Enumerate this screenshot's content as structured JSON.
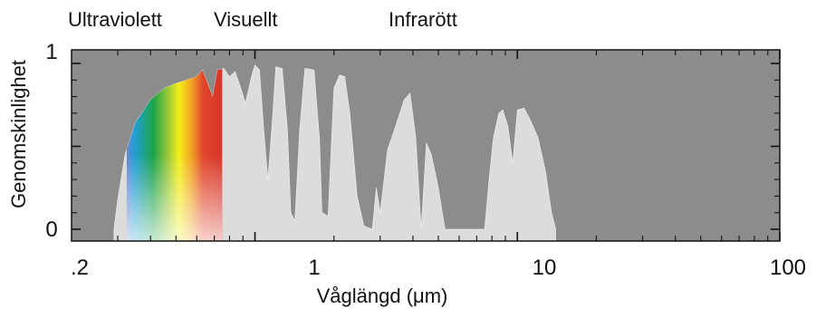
{
  "chart_data": {
    "type": "area",
    "title": "",
    "region_labels": [
      "Ultraviolett",
      "Visuellt",
      "Infrarött"
    ],
    "xlabel": "Våglängd (μm)",
    "ylabel": "Genomskinlighet",
    "x_scale": "log",
    "xlim": [
      0.2,
      100
    ],
    "ylim": [
      0,
      1
    ],
    "x_tick_labels": [
      ".2",
      "1",
      "10",
      "100"
    ],
    "y_tick_labels": [
      "0",
      "1"
    ],
    "grid": false,
    "colors": {
      "background": "#8c8c8c",
      "transmission": "#dcdcdc",
      "spectrum": [
        "#6f84cc",
        "#1f9fd8",
        "#1da34a",
        "#8fc53c",
        "#f4ef18",
        "#f1a223",
        "#e0462a",
        "#d7342a"
      ]
    },
    "series": [
      {
        "values": [
          [
            0.29,
            0.0
          ],
          [
            0.3,
            0.18
          ],
          [
            0.32,
            0.45
          ],
          [
            0.35,
            0.64
          ],
          [
            0.4,
            0.78
          ],
          [
            0.45,
            0.85
          ],
          [
            0.5,
            0.88
          ],
          [
            0.55,
            0.9
          ],
          [
            0.6,
            0.92
          ],
          [
            0.63,
            0.96
          ],
          [
            0.66,
            0.88
          ],
          [
            0.69,
            0.8
          ],
          [
            0.72,
            0.96
          ],
          [
            0.76,
            0.97
          ],
          [
            0.8,
            0.92
          ],
          [
            0.84,
            0.95
          ],
          [
            0.88,
            0.86
          ],
          [
            0.92,
            0.76
          ],
          [
            0.97,
            0.92
          ],
          [
            1.0,
            0.99
          ],
          [
            1.04,
            0.96
          ],
          [
            1.08,
            0.6
          ],
          [
            1.12,
            0.3
          ],
          [
            1.17,
            0.7
          ],
          [
            1.2,
            0.98
          ],
          [
            1.27,
            0.97
          ],
          [
            1.33,
            0.6
          ],
          [
            1.37,
            0.1
          ],
          [
            1.42,
            0.05
          ],
          [
            1.48,
            0.6
          ],
          [
            1.55,
            0.97
          ],
          [
            1.68,
            0.96
          ],
          [
            1.76,
            0.55
          ],
          [
            1.8,
            0.1
          ],
          [
            1.9,
            0.08
          ],
          [
            2.0,
            0.85
          ],
          [
            2.1,
            0.93
          ],
          [
            2.2,
            0.92
          ],
          [
            2.3,
            0.7
          ],
          [
            2.45,
            0.2
          ],
          [
            2.6,
            0.02
          ],
          [
            2.8,
            0.0
          ],
          [
            2.9,
            0.25
          ],
          [
            3.0,
            0.1
          ],
          [
            3.2,
            0.48
          ],
          [
            3.4,
            0.6
          ],
          [
            3.7,
            0.78
          ],
          [
            3.9,
            0.82
          ],
          [
            4.1,
            0.55
          ],
          [
            4.3,
            0.0
          ],
          [
            4.5,
            0.52
          ],
          [
            4.7,
            0.45
          ],
          [
            5.0,
            0.25
          ],
          [
            5.3,
            0.0
          ],
          [
            7.5,
            0.0
          ],
          [
            7.8,
            0.3
          ],
          [
            8.1,
            0.55
          ],
          [
            8.5,
            0.7
          ],
          [
            8.8,
            0.72
          ],
          [
            9.2,
            0.62
          ],
          [
            9.6,
            0.4
          ],
          [
            10.0,
            0.72
          ],
          [
            10.6,
            0.73
          ],
          [
            11.2,
            0.66
          ],
          [
            12.0,
            0.55
          ],
          [
            12.8,
            0.35
          ],
          [
            13.5,
            0.1
          ],
          [
            14.0,
            0.0
          ]
        ]
      }
    ],
    "visible_band": [
      0.38,
      0.75
    ]
  }
}
